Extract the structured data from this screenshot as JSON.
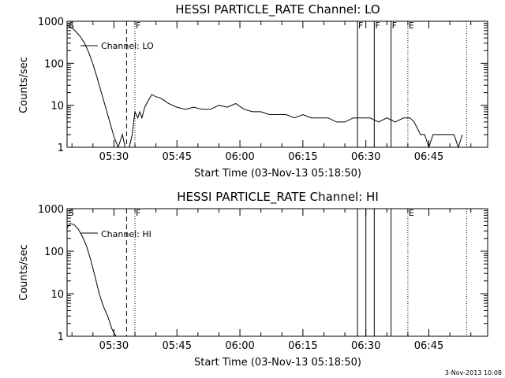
{
  "chart_data": [
    {
      "type": "line",
      "title": "HESSI PARTICLE_RATE Channel: LO",
      "xlabel": "Start Time (03-Nov-13 05:18:50)",
      "ylabel": "Counts/sec",
      "y_scale": "log",
      "ylim": [
        1,
        1000
      ],
      "xlim": [
        "05:18:50",
        "06:59:00"
      ],
      "x_ticks": [
        "05:30",
        "05:45",
        "06:00",
        "06:15",
        "06:30",
        "06:45"
      ],
      "y_ticks": [
        "1",
        "10",
        "100",
        "1000"
      ],
      "legend": "Channel: LO",
      "grid": false,
      "flags": [
        {
          "label": "S",
          "time": "05:19:00",
          "style": "none"
        },
        {
          "label": "",
          "time": "05:33:00",
          "style": "dashed"
        },
        {
          "label": "F",
          "time": "05:35:00",
          "style": "dotted"
        },
        {
          "label": "F",
          "time": "06:28:00",
          "style": "solid"
        },
        {
          "label": "F",
          "time": "06:32:00",
          "style": "solid"
        },
        {
          "label": "F",
          "time": "06:36:00",
          "style": "solid"
        },
        {
          "label": "E",
          "time": "06:40:00",
          "style": "dotted"
        },
        {
          "label": "",
          "time": "06:54:00",
          "style": "dotted"
        }
      ],
      "series": [
        {
          "x": [
            "05:18:50",
            "05:20:00",
            "05:21:00",
            "05:22:00",
            "05:23:00",
            "05:24:00",
            "05:25:00",
            "05:26:00",
            "05:27:00",
            "05:28:00",
            "05:29:00",
            "05:30:00",
            "05:31:00",
            "05:32:00",
            "05:32:40",
            "05:33:10",
            "05:33:40",
            "05:34:20",
            "05:35:00",
            "05:35:40",
            "05:36:10",
            "05:36:40",
            "05:37:20",
            "05:38:00",
            "05:39:00",
            "05:40:00",
            "05:41:00",
            "05:42:00",
            "05:43:00",
            "05:45:00",
            "05:47:00",
            "05:49:00",
            "05:51:00",
            "05:53:00",
            "05:55:00",
            "05:57:00",
            "05:59:00",
            "06:01:00",
            "06:03:00",
            "06:05:00",
            "06:07:00",
            "06:09:00",
            "06:11:00",
            "06:13:00",
            "06:15:00",
            "06:17:00",
            "06:19:00",
            "06:21:00",
            "06:23:00",
            "06:25:00",
            "06:27:00",
            "06:29:00",
            "06:31:00",
            "06:33:00",
            "06:35:00",
            "06:37:00",
            "06:39:00",
            "06:40:30",
            "06:41:30",
            "06:43:00",
            "06:44:00",
            "06:45:00",
            "06:46:00",
            "06:47:00",
            "06:49:00",
            "06:51:00",
            "06:52:00",
            "06:53:00"
          ],
          "y": [
            800,
            700,
            560,
            430,
            300,
            180,
            95,
            45,
            20,
            9,
            4,
            1.8,
            1,
            2,
            1,
            1,
            1,
            2,
            7,
            5,
            7,
            5,
            9,
            12,
            18,
            16,
            15,
            13,
            11,
            9,
            8,
            9,
            8,
            8,
            10,
            9,
            11,
            8,
            7,
            7,
            6,
            6,
            6,
            5,
            6,
            5,
            5,
            5,
            4,
            4,
            5,
            5,
            5,
            4,
            5,
            4,
            5,
            5,
            4,
            2,
            2,
            1,
            2,
            2,
            2,
            2,
            1,
            2
          ]
        }
      ]
    },
    {
      "type": "line",
      "title": "HESSI PARTICLE_RATE Channel: HI",
      "xlabel": "Start Time (03-Nov-13 05:18:50)",
      "ylabel": "Counts/sec",
      "y_scale": "log",
      "ylim": [
        1,
        1000
      ],
      "xlim": [
        "05:18:50",
        "06:59:00"
      ],
      "x_ticks": [
        "05:30",
        "05:45",
        "06:00",
        "06:15",
        "06:30",
        "06:45"
      ],
      "y_ticks": [
        "1",
        "10",
        "100",
        "1000"
      ],
      "legend": "Channel: HI",
      "grid": false,
      "flags": [
        {
          "label": "S",
          "time": "05:19:00",
          "style": "none"
        },
        {
          "label": "",
          "time": "05:33:00",
          "style": "dashed"
        },
        {
          "label": "F",
          "time": "05:35:00",
          "style": "dotted"
        },
        {
          "label": "",
          "time": "06:28:00",
          "style": "solid"
        },
        {
          "label": "",
          "time": "06:30:00",
          "style": "solid"
        },
        {
          "label": "",
          "time": "06:32:00",
          "style": "solid"
        },
        {
          "label": "",
          "time": "06:36:00",
          "style": "solid"
        },
        {
          "label": "E",
          "time": "06:40:00",
          "style": "dotted"
        },
        {
          "label": "",
          "time": "06:54:00",
          "style": "dotted"
        }
      ],
      "series": [
        {
          "x": [
            "05:18:50",
            "05:19:30",
            "05:20:30",
            "05:21:30",
            "05:22:30",
            "05:23:30",
            "05:24:30",
            "05:25:30",
            "05:26:30",
            "05:27:30",
            "05:28:30",
            "05:29:30",
            "05:30:00",
            "05:30:30"
          ],
          "y": [
            350,
            450,
            420,
            330,
            220,
            130,
            60,
            25,
            10,
            5,
            3,
            1.5,
            1.2,
            1
          ]
        }
      ]
    }
  ],
  "footer": {
    "timestamp": "3-Nov-2013 10:08"
  }
}
